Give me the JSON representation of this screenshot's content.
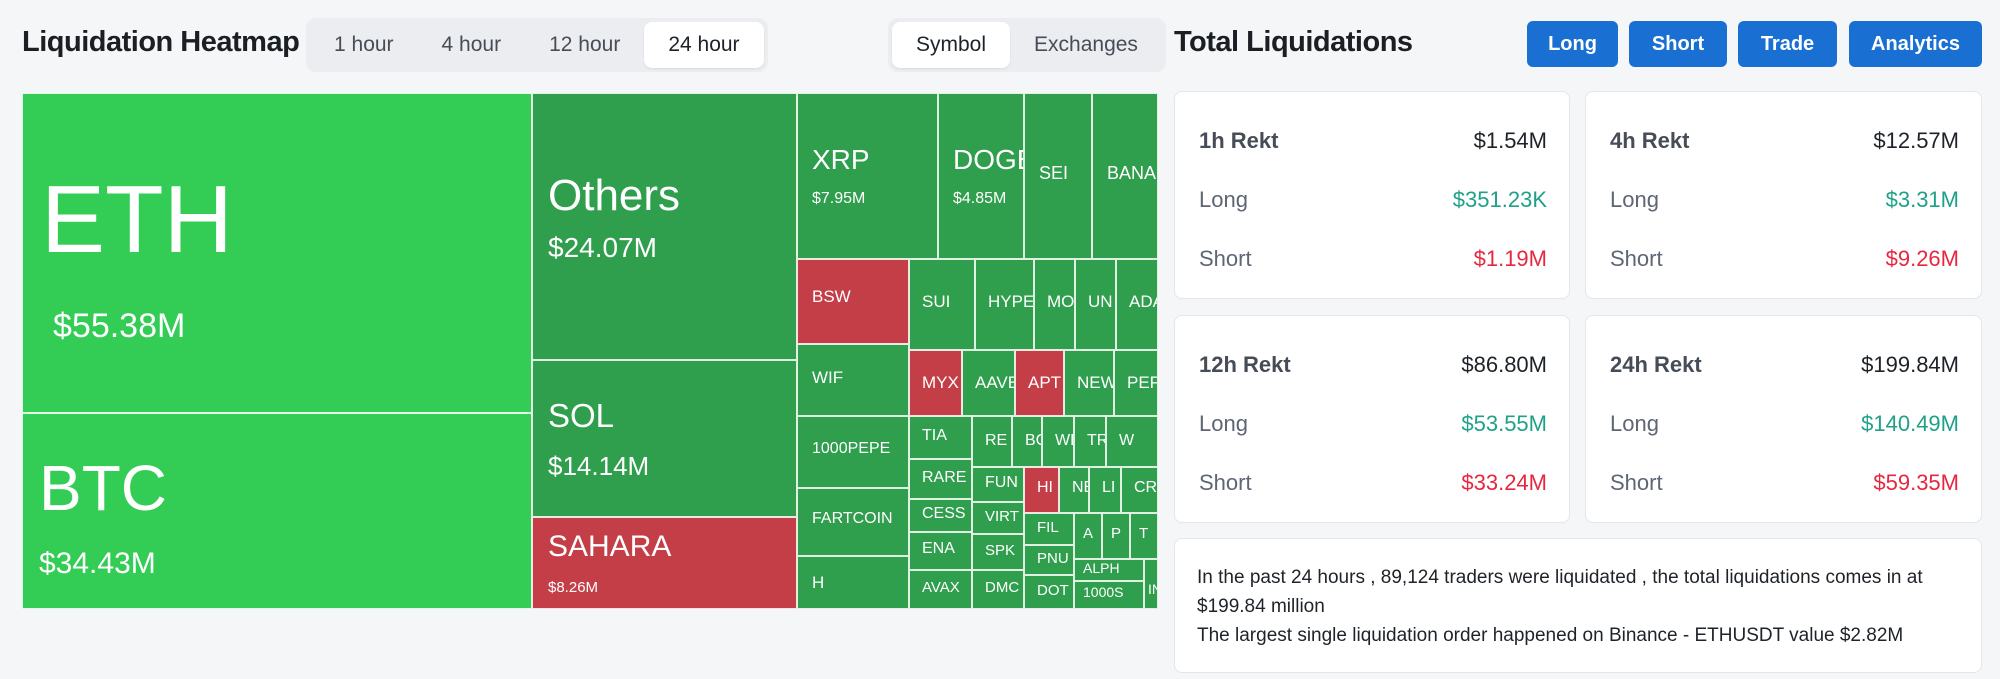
{
  "header": {
    "title": "Liquidation Heatmap"
  },
  "time_tabs": [
    {
      "label": "1 hour",
      "active": false
    },
    {
      "label": "4 hour",
      "active": false
    },
    {
      "label": "12 hour",
      "active": false
    },
    {
      "label": "24 hour",
      "active": true
    }
  ],
  "view_tabs": [
    {
      "label": "Symbol",
      "active": true
    },
    {
      "label": "Exchanges",
      "active": false
    }
  ],
  "heatmap": {
    "colors": {
      "bright_green": "#33cc55",
      "green": "#2f9e4d",
      "red": "#c43e47"
    },
    "tiles": [
      {
        "symbol": "ETH",
        "value": "$55.38M",
        "color": "bright_green"
      },
      {
        "symbol": "BTC",
        "value": "$34.43M",
        "color": "bright_green"
      },
      {
        "symbol": "Others",
        "value": "$24.07M",
        "color": "green"
      },
      {
        "symbol": "SOL",
        "value": "$14.14M",
        "color": "green"
      },
      {
        "symbol": "SAHARA",
        "value": "$8.26M",
        "color": "red"
      },
      {
        "symbol": "XRP",
        "value": "$7.95M",
        "color": "green"
      },
      {
        "symbol": "DOGE",
        "value": "$4.85M",
        "color": "green"
      },
      {
        "symbol": "SEI",
        "value": "",
        "color": "green"
      },
      {
        "symbol": "BANANA",
        "value": "",
        "color": "green"
      },
      {
        "symbol": "BSW",
        "value": "",
        "color": "red"
      },
      {
        "symbol": "WIF",
        "value": "",
        "color": "green"
      },
      {
        "symbol": "1000PEPE",
        "value": "",
        "color": "green"
      },
      {
        "symbol": "FARTCOIN",
        "value": "",
        "color": "green"
      },
      {
        "symbol": "H",
        "value": "",
        "color": "green"
      },
      {
        "symbol": "SUI",
        "value": "",
        "color": "green"
      },
      {
        "symbol": "HYPE",
        "value": "",
        "color": "green"
      },
      {
        "symbol": "MO",
        "value": "",
        "color": "green"
      },
      {
        "symbol": "UN",
        "value": "",
        "color": "green"
      },
      {
        "symbol": "ADA",
        "value": "",
        "color": "green"
      },
      {
        "symbol": "MYX",
        "value": "",
        "color": "red"
      },
      {
        "symbol": "AAVE",
        "value": "",
        "color": "green"
      },
      {
        "symbol": "APT",
        "value": "",
        "color": "red"
      },
      {
        "symbol": "NEW",
        "value": "",
        "color": "green"
      },
      {
        "symbol": "PEP",
        "value": "",
        "color": "green"
      },
      {
        "symbol": "TIA",
        "value": "",
        "color": "green"
      },
      {
        "symbol": "RE",
        "value": "",
        "color": "green"
      },
      {
        "symbol": "BC",
        "value": "",
        "color": "green"
      },
      {
        "symbol": "WL",
        "value": "",
        "color": "green"
      },
      {
        "symbol": "TR",
        "value": "",
        "color": "green"
      },
      {
        "symbol": "W",
        "value": "",
        "color": "green"
      },
      {
        "symbol": "RARE",
        "value": "",
        "color": "green"
      },
      {
        "symbol": "FUN",
        "value": "",
        "color": "green"
      },
      {
        "symbol": "HI",
        "value": "",
        "color": "red"
      },
      {
        "symbol": "NE",
        "value": "",
        "color": "green"
      },
      {
        "symbol": "LI",
        "value": "",
        "color": "green"
      },
      {
        "symbol": "CR",
        "value": "",
        "color": "green"
      },
      {
        "symbol": "CESS",
        "value": "",
        "color": "green"
      },
      {
        "symbol": "VIRT",
        "value": "",
        "color": "green"
      },
      {
        "symbol": "FIL",
        "value": "",
        "color": "green"
      },
      {
        "symbol": "A",
        "value": "",
        "color": "green"
      },
      {
        "symbol": "P",
        "value": "",
        "color": "green"
      },
      {
        "symbol": "T",
        "value": "",
        "color": "green"
      },
      {
        "symbol": "ENA",
        "value": "",
        "color": "green"
      },
      {
        "symbol": "SPK",
        "value": "",
        "color": "green"
      },
      {
        "symbol": "PNU",
        "value": "",
        "color": "green"
      },
      {
        "symbol": "ALPH",
        "value": "",
        "color": "green"
      },
      {
        "symbol": "AVAX",
        "value": "",
        "color": "green"
      },
      {
        "symbol": "DMC",
        "value": "",
        "color": "green"
      },
      {
        "symbol": "DOT",
        "value": "",
        "color": "green"
      },
      {
        "symbol": "1000S",
        "value": "",
        "color": "green"
      },
      {
        "symbol": "IN",
        "value": "",
        "color": "green"
      }
    ]
  },
  "totals": {
    "title": "Total Liquidations",
    "buttons": [
      "Long",
      "Short",
      "Trade",
      "Analytics"
    ],
    "cards": [
      {
        "title": "1h Rekt",
        "total": "$1.54M",
        "long_label": "Long",
        "long": "$351.23K",
        "short_label": "Short",
        "short": "$1.19M"
      },
      {
        "title": "4h Rekt",
        "total": "$12.57M",
        "long_label": "Long",
        "long": "$3.31M",
        "short_label": "Short",
        "short": "$9.26M"
      },
      {
        "title": "12h Rekt",
        "total": "$86.80M",
        "long_label": "Long",
        "long": "$53.55M",
        "short_label": "Short",
        "short": "$33.24M"
      },
      {
        "title": "24h Rekt",
        "total": "$199.84M",
        "long_label": "Long",
        "long": "$140.49M",
        "short_label": "Short",
        "short": "$59.35M"
      }
    ],
    "summary_line1": "In the past 24 hours , 89,124 traders were liquidated , the total liquidations comes in at $199.84 million",
    "summary_line2": "The largest single liquidation order happened on Binance - ETHUSDT value $2.82M"
  }
}
